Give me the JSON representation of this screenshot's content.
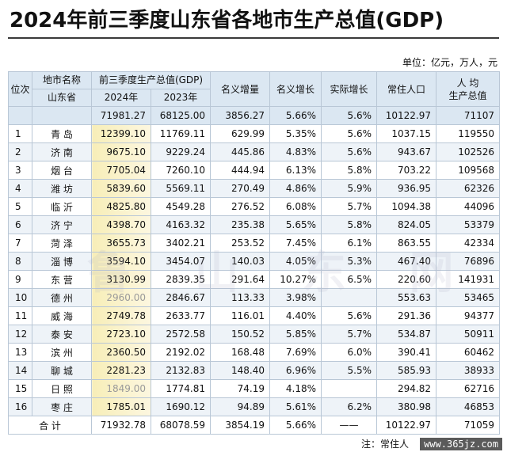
{
  "title": "2024年前三季度山东省各地市生产总值(GDP)",
  "unit": "单位：亿元，万人，元",
  "headers": {
    "rank": "位次",
    "city": "地市名称",
    "gdp_group": "前三季度生产总值(GDP)",
    "gdp2024": "2024年",
    "gdp2023": "2023年",
    "nominal_inc": "名义增量",
    "nominal_growth": "名义增长",
    "real_growth": "实际增长",
    "population": "常住人口",
    "per_capita": "人 均\n生产总值"
  },
  "province": {
    "name": "山东省",
    "gdp2024": "71981.27",
    "gdp2023": "68125.00",
    "inc": "3856.27",
    "nom": "5.66%",
    "real": "5.6%",
    "pop": "10122.97",
    "pc": "71107"
  },
  "rows": [
    {
      "rank": "1",
      "city": "青 岛",
      "gdp2024": "12399.10",
      "gdp2023": "11769.11",
      "inc": "629.99",
      "nom": "5.35%",
      "real": "5.6%",
      "pop": "1037.15",
      "pc": "119550",
      "dim": false
    },
    {
      "rank": "2",
      "city": "济 南",
      "gdp2024": "9675.10",
      "gdp2023": "9229.24",
      "inc": "445.86",
      "nom": "4.83%",
      "real": "5.6%",
      "pop": "943.67",
      "pc": "102526",
      "dim": false
    },
    {
      "rank": "3",
      "city": "烟 台",
      "gdp2024": "7705.04",
      "gdp2023": "7260.10",
      "inc": "444.94",
      "nom": "6.13%",
      "real": "5.8%",
      "pop": "703.22",
      "pc": "109568",
      "dim": false
    },
    {
      "rank": "4",
      "city": "潍 坊",
      "gdp2024": "5839.60",
      "gdp2023": "5569.11",
      "inc": "270.49",
      "nom": "4.86%",
      "real": "5.9%",
      "pop": "936.95",
      "pc": "62326",
      "dim": false
    },
    {
      "rank": "5",
      "city": "临 沂",
      "gdp2024": "4825.80",
      "gdp2023": "4549.28",
      "inc": "276.52",
      "nom": "6.08%",
      "real": "5.7%",
      "pop": "1094.38",
      "pc": "44096",
      "dim": false
    },
    {
      "rank": "6",
      "city": "济 宁",
      "gdp2024": "4398.70",
      "gdp2023": "4163.32",
      "inc": "235.38",
      "nom": "5.65%",
      "real": "5.8%",
      "pop": "824.05",
      "pc": "53379",
      "dim": false
    },
    {
      "rank": "7",
      "city": "菏 泽",
      "gdp2024": "3655.73",
      "gdp2023": "3402.21",
      "inc": "253.52",
      "nom": "7.45%",
      "real": "6.1%",
      "pop": "863.55",
      "pc": "42334",
      "dim": false
    },
    {
      "rank": "8",
      "city": "淄 博",
      "gdp2024": "3594.10",
      "gdp2023": "3454.07",
      "inc": "140.03",
      "nom": "4.05%",
      "real": "5.3%",
      "pop": "467.40",
      "pc": "76896",
      "dim": false
    },
    {
      "rank": "9",
      "city": "东 营",
      "gdp2024": "3130.99",
      "gdp2023": "2839.35",
      "inc": "291.64",
      "nom": "10.27%",
      "real": "6.5%",
      "pop": "220.60",
      "pc": "141931",
      "dim": false
    },
    {
      "rank": "10",
      "city": "德 州",
      "gdp2024": "2960.00",
      "gdp2023": "2846.67",
      "inc": "113.33",
      "nom": "3.98%",
      "real": "",
      "pop": "553.63",
      "pc": "53465",
      "dim": true
    },
    {
      "rank": "11",
      "city": "威 海",
      "gdp2024": "2749.78",
      "gdp2023": "2633.77",
      "inc": "116.01",
      "nom": "4.40%",
      "real": "5.6%",
      "pop": "291.36",
      "pc": "94377",
      "dim": false
    },
    {
      "rank": "12",
      "city": "泰 安",
      "gdp2024": "2723.10",
      "gdp2023": "2572.58",
      "inc": "150.52",
      "nom": "5.85%",
      "real": "5.7%",
      "pop": "534.87",
      "pc": "50911",
      "dim": false
    },
    {
      "rank": "13",
      "city": "滨 州",
      "gdp2024": "2360.50",
      "gdp2023": "2192.02",
      "inc": "168.48",
      "nom": "7.69%",
      "real": "6.0%",
      "pop": "390.41",
      "pc": "60462",
      "dim": false
    },
    {
      "rank": "14",
      "city": "聊 城",
      "gdp2024": "2281.23",
      "gdp2023": "2132.83",
      "inc": "148.40",
      "nom": "6.96%",
      "real": "5.5%",
      "pop": "585.93",
      "pc": "38933",
      "dim": false
    },
    {
      "rank": "15",
      "city": "日 照",
      "gdp2024": "1849.00",
      "gdp2023": "1774.81",
      "inc": "74.19",
      "nom": "4.18%",
      "real": "",
      "pop": "294.82",
      "pc": "62716",
      "dim": true
    },
    {
      "rank": "16",
      "city": "枣 庄",
      "gdp2024": "1785.01",
      "gdp2023": "1690.12",
      "inc": "94.89",
      "nom": "5.61%",
      "real": "6.2%",
      "pop": "380.98",
      "pc": "46853",
      "dim": false
    }
  ],
  "total": {
    "name": "合 计",
    "gdp2024": "71932.78",
    "gdp2023": "68078.59",
    "inc": "3854.19",
    "nom": "5.66%",
    "real": "——",
    "pop": "10122.97",
    "pc": "71059"
  },
  "note": "注：常住人",
  "watermark": "www.365jz.com",
  "bg_watermark": "鲁 山 东 网"
}
